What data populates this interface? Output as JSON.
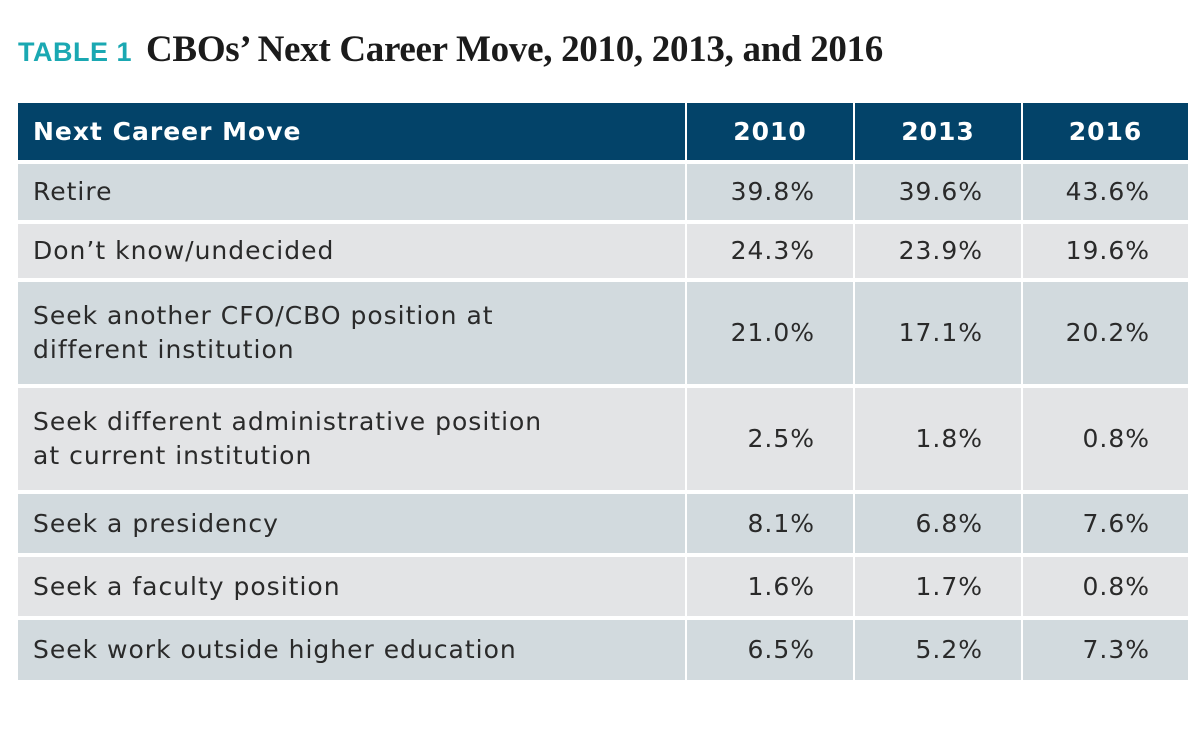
{
  "table_label": "TABLE 1",
  "title": "CBOs’ Next Career Move, 2010, 2013, and 2016",
  "colors": {
    "accent": "#1aa8b2",
    "header_bg": "#034369",
    "row_light_blue": "#d2dade",
    "row_light_gray": "#e3e4e6"
  },
  "header": {
    "label": "Next Career Move",
    "years": [
      "2010",
      "2013",
      "2016"
    ]
  },
  "rows": [
    {
      "label_lines": [
        "Retire"
      ],
      "values": [
        "39.8%",
        "39.6%",
        "43.6%"
      ]
    },
    {
      "label_lines": [
        "Don’t know/undecided"
      ],
      "values": [
        "24.3%",
        "23.9%",
        "19.6%"
      ]
    },
    {
      "label_lines": [
        "Seek another CFO/CBO position at",
        "different institution"
      ],
      "values": [
        "21.0%",
        "17.1%",
        "20.2%"
      ]
    },
    {
      "label_lines": [
        "Seek different administrative position",
        "at current institution"
      ],
      "values": [
        "2.5%",
        "1.8%",
        "0.8%"
      ]
    },
    {
      "label_lines": [
        "Seek a presidency"
      ],
      "values": [
        "8.1%",
        "6.8%",
        "7.6%"
      ]
    },
    {
      "label_lines": [
        "Seek a faculty position"
      ],
      "values": [
        "1.6%",
        "1.7%",
        "0.8%"
      ]
    },
    {
      "label_lines": [
        "Seek work outside higher education"
      ],
      "values": [
        "6.5%",
        "5.2%",
        "7.3%"
      ]
    }
  ]
}
